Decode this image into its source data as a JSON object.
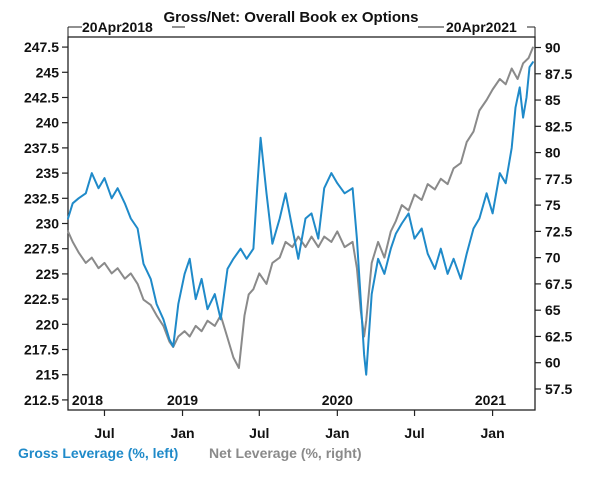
{
  "chart_data": {
    "type": "line",
    "title": "Gross/Net: Overall Book ex Options",
    "start_date_label": "20Apr2018",
    "end_date_label": "20Apr2021",
    "x_axis": {
      "month_labels": [
        "Jul",
        "Jan",
        "Jul",
        "Jan",
        "Jul",
        "Jan"
      ],
      "year_labels": [
        "2018",
        "2019",
        "2020",
        "2021"
      ]
    },
    "left_axis": {
      "ylim": [
        211.5,
        248.5
      ],
      "ticks": [
        "212.5",
        "215",
        "217.5",
        "220",
        "222.5",
        "225",
        "227.5",
        "230",
        "232.5",
        "235",
        "237.5",
        "240",
        "242.5",
        "245",
        "247.5"
      ]
    },
    "right_axis": {
      "ylim": [
        55.5,
        91.0
      ],
      "ticks": [
        "57.5",
        "60",
        "62.5",
        "65",
        "67.5",
        "70",
        "72.5",
        "75",
        "77.5",
        "80",
        "82.5",
        "85",
        "87.5",
        "90"
      ]
    },
    "series": [
      {
        "name": "Gross Leverage (%, left)",
        "axis": "left",
        "color": "#1f8ac9",
        "points": [
          [
            "2018-04-20",
            230.5
          ],
          [
            "2018-05-01",
            232.0
          ],
          [
            "2018-05-15",
            232.5
          ],
          [
            "2018-06-01",
            233.0
          ],
          [
            "2018-06-15",
            235.0
          ],
          [
            "2018-07-01",
            233.5
          ],
          [
            "2018-07-15",
            234.5
          ],
          [
            "2018-08-01",
            232.5
          ],
          [
            "2018-08-15",
            233.5
          ],
          [
            "2018-09-01",
            232.0
          ],
          [
            "2018-09-15",
            230.5
          ],
          [
            "2018-10-01",
            229.5
          ],
          [
            "2018-10-15",
            226.0
          ],
          [
            "2018-11-01",
            224.5
          ],
          [
            "2018-11-15",
            222.0
          ],
          [
            "2018-12-01",
            220.5
          ],
          [
            "2018-12-15",
            218.5
          ],
          [
            "2018-12-24",
            217.8
          ],
          [
            "2019-01-05",
            222.0
          ],
          [
            "2019-01-20",
            225.0
          ],
          [
            "2019-02-01",
            226.5
          ],
          [
            "2019-02-15",
            222.5
          ],
          [
            "2019-03-01",
            224.5
          ],
          [
            "2019-03-15",
            221.5
          ],
          [
            "2019-04-01",
            223.0
          ],
          [
            "2019-04-15",
            220.5
          ],
          [
            "2019-05-01",
            225.5
          ],
          [
            "2019-05-15",
            226.5
          ],
          [
            "2019-06-01",
            227.5
          ],
          [
            "2019-06-15",
            226.5
          ],
          [
            "2019-07-01",
            227.5
          ],
          [
            "2019-07-10",
            233.5
          ],
          [
            "2019-07-18",
            238.5
          ],
          [
            "2019-08-01",
            233.0
          ],
          [
            "2019-08-15",
            228.0
          ],
          [
            "2019-09-01",
            230.5
          ],
          [
            "2019-09-15",
            233.0
          ],
          [
            "2019-10-01",
            229.5
          ],
          [
            "2019-10-15",
            226.5
          ],
          [
            "2019-11-01",
            230.5
          ],
          [
            "2019-11-15",
            231.0
          ],
          [
            "2019-12-01",
            228.5
          ],
          [
            "2019-12-15",
            233.5
          ],
          [
            "2020-01-01",
            235.0
          ],
          [
            "2020-01-15",
            234.0
          ],
          [
            "2020-02-01",
            233.0
          ],
          [
            "2020-02-20",
            233.5
          ],
          [
            "2020-03-01",
            228.5
          ],
          [
            "2020-03-10",
            222.5
          ],
          [
            "2020-03-18",
            217.0
          ],
          [
            "2020-03-23",
            215.0
          ],
          [
            "2020-04-05",
            223.0
          ],
          [
            "2020-04-20",
            226.5
          ],
          [
            "2020-05-05",
            225.0
          ],
          [
            "2020-05-20",
            227.5
          ],
          [
            "2020-06-01",
            229.0
          ],
          [
            "2020-06-15",
            230.0
          ],
          [
            "2020-07-01",
            231.0
          ],
          [
            "2020-07-15",
            228.5
          ],
          [
            "2020-08-01",
            229.5
          ],
          [
            "2020-08-15",
            227.0
          ],
          [
            "2020-09-01",
            225.5
          ],
          [
            "2020-09-15",
            227.5
          ],
          [
            "2020-10-01",
            225.0
          ],
          [
            "2020-10-15",
            226.5
          ],
          [
            "2020-11-01",
            224.5
          ],
          [
            "2020-11-15",
            227.0
          ],
          [
            "2020-12-01",
            229.5
          ],
          [
            "2020-12-15",
            230.5
          ],
          [
            "2021-01-01",
            233.0
          ],
          [
            "2021-01-15",
            231.0
          ],
          [
            "2021-02-01",
            235.0
          ],
          [
            "2021-02-15",
            234.0
          ],
          [
            "2021-03-01",
            237.5
          ],
          [
            "2021-03-10",
            241.5
          ],
          [
            "2021-03-20",
            243.5
          ],
          [
            "2021-03-28",
            240.5
          ],
          [
            "2021-04-05",
            242.5
          ],
          [
            "2021-04-12",
            245.5
          ],
          [
            "2021-04-20",
            246.0
          ]
        ]
      },
      {
        "name": "Net Leverage (%, right)",
        "axis": "right",
        "color": "#8a8a8a",
        "points": [
          [
            "2018-04-20",
            72.5
          ],
          [
            "2018-05-01",
            71.5
          ],
          [
            "2018-05-15",
            70.5
          ],
          [
            "2018-06-01",
            69.5
          ],
          [
            "2018-06-15",
            70.0
          ],
          [
            "2018-07-01",
            69.0
          ],
          [
            "2018-07-15",
            69.5
          ],
          [
            "2018-08-01",
            68.5
          ],
          [
            "2018-08-15",
            69.0
          ],
          [
            "2018-09-01",
            68.0
          ],
          [
            "2018-09-15",
            68.5
          ],
          [
            "2018-10-01",
            67.5
          ],
          [
            "2018-10-15",
            66.0
          ],
          [
            "2018-11-01",
            65.5
          ],
          [
            "2018-11-15",
            64.5
          ],
          [
            "2018-12-01",
            63.5
          ],
          [
            "2018-12-15",
            62.0
          ],
          [
            "2018-12-24",
            61.5
          ],
          [
            "2019-01-05",
            62.5
          ],
          [
            "2019-01-20",
            63.0
          ],
          [
            "2019-02-01",
            62.5
          ],
          [
            "2019-02-15",
            63.5
          ],
          [
            "2019-03-01",
            63.0
          ],
          [
            "2019-03-15",
            64.0
          ],
          [
            "2019-04-01",
            63.5
          ],
          [
            "2019-04-15",
            64.5
          ],
          [
            "2019-04-30",
            62.5
          ],
          [
            "2019-05-15",
            60.5
          ],
          [
            "2019-05-28",
            59.5
          ],
          [
            "2019-06-10",
            64.5
          ],
          [
            "2019-06-20",
            66.5
          ],
          [
            "2019-07-01",
            67.0
          ],
          [
            "2019-07-15",
            68.5
          ],
          [
            "2019-08-01",
            67.5
          ],
          [
            "2019-08-15",
            69.5
          ],
          [
            "2019-09-01",
            70.0
          ],
          [
            "2019-09-15",
            71.5
          ],
          [
            "2019-10-01",
            71.0
          ],
          [
            "2019-10-15",
            72.0
          ],
          [
            "2019-11-01",
            71.0
          ],
          [
            "2019-11-15",
            72.0
          ],
          [
            "2019-12-01",
            71.0
          ],
          [
            "2019-12-15",
            72.0
          ],
          [
            "2020-01-01",
            71.5
          ],
          [
            "2020-01-15",
            72.5
          ],
          [
            "2020-02-01",
            71.0
          ],
          [
            "2020-02-20",
            71.5
          ],
          [
            "2020-03-01",
            69.0
          ],
          [
            "2020-03-10",
            65.0
          ],
          [
            "2020-03-18",
            62.5
          ],
          [
            "2020-03-23",
            64.0
          ],
          [
            "2020-04-05",
            69.5
          ],
          [
            "2020-04-20",
            71.5
          ],
          [
            "2020-05-05",
            70.0
          ],
          [
            "2020-05-20",
            72.5
          ],
          [
            "2020-06-01",
            73.5
          ],
          [
            "2020-06-15",
            75.0
          ],
          [
            "2020-07-01",
            74.5
          ],
          [
            "2020-07-15",
            76.0
          ],
          [
            "2020-08-01",
            75.5
          ],
          [
            "2020-08-15",
            77.0
          ],
          [
            "2020-09-01",
            76.5
          ],
          [
            "2020-09-15",
            77.5
          ],
          [
            "2020-10-01",
            77.0
          ],
          [
            "2020-10-15",
            78.5
          ],
          [
            "2020-11-01",
            79.0
          ],
          [
            "2020-11-15",
            81.0
          ],
          [
            "2020-12-01",
            82.0
          ],
          [
            "2020-12-15",
            84.0
          ],
          [
            "2021-01-01",
            85.0
          ],
          [
            "2021-01-15",
            86.0
          ],
          [
            "2021-02-01",
            87.0
          ],
          [
            "2021-02-15",
            86.5
          ],
          [
            "2021-03-01",
            88.0
          ],
          [
            "2021-03-15",
            87.0
          ],
          [
            "2021-03-28",
            88.5
          ],
          [
            "2021-04-10",
            89.0
          ],
          [
            "2021-04-20",
            90.0
          ]
        ]
      }
    ],
    "grid": false,
    "legend": "bottom-left"
  }
}
